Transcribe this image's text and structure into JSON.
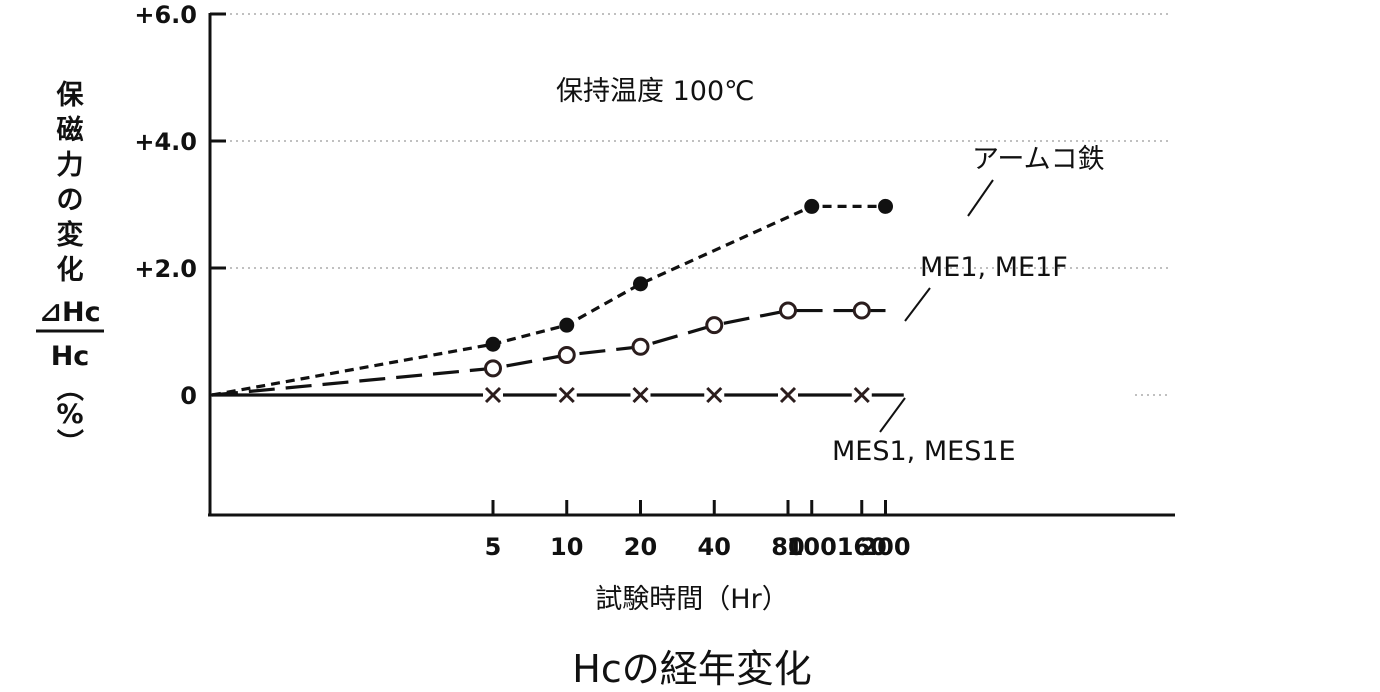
{
  "chart_data": {
    "type": "line",
    "title": "Hcの経年変化",
    "annotation": "保持温度 100℃",
    "xlabel": "試験時間（Hr）",
    "ylabel": {
      "chars": [
        "保",
        "磁",
        "力",
        "の",
        "変",
        "化"
      ],
      "numerator": "⊿Hc",
      "denominator": "Hc",
      "unit_chars": [
        "（",
        "%",
        "）"
      ]
    },
    "x_scale": "log",
    "x_ticks": [
      5,
      10,
      20,
      40,
      80,
      100,
      160,
      200
    ],
    "x_tick_labels": [
      "5",
      "10",
      "20",
      "40",
      "80",
      "100",
      "160",
      "200"
    ],
    "y_ticks": [
      6.0,
      4.0,
      2.0,
      0
    ],
    "y_tick_labels": [
      "+6.0",
      "+4.0",
      "+2.0",
      "0"
    ],
    "ylim": [
      -1.85,
      6.0
    ],
    "grid": "horizontal dotted",
    "series": [
      {
        "name": "アームコ鉄",
        "marker": "filled-circle",
        "line_style": "short-dash",
        "x": [
          5,
          10,
          20,
          100,
          200
        ],
        "y": [
          0.8,
          1.1,
          1.75,
          2.97,
          2.97
        ]
      },
      {
        "name": "ME1, ME1F",
        "marker": "open-circle",
        "line_style": "long-dash",
        "x": [
          5,
          10,
          20,
          40,
          80,
          160
        ],
        "y": [
          0.42,
          0.63,
          0.76,
          1.1,
          1.33,
          1.33
        ]
      },
      {
        "name": "MES1, MES1E",
        "marker": "cross",
        "line_style": "solid",
        "x": [
          5,
          10,
          20,
          40,
          80,
          160
        ],
        "y": [
          0,
          0,
          0,
          0,
          0,
          0
        ]
      }
    ]
  }
}
